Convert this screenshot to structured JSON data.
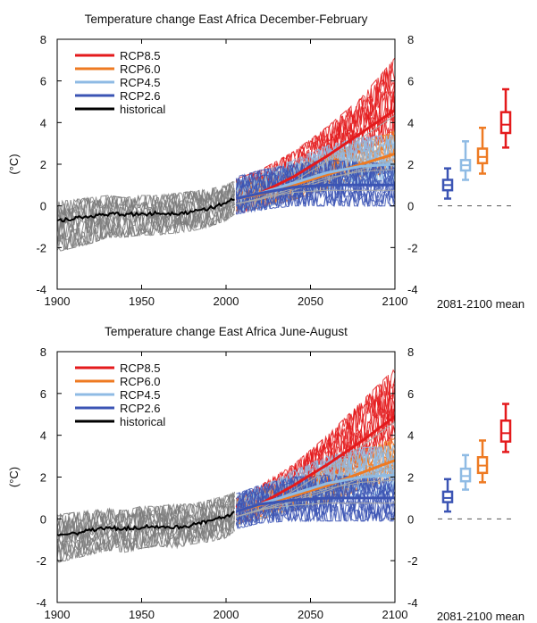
{
  "colors": {
    "historical_band": "#7b7b7b",
    "historical_mean": "#000000",
    "rcp85": "#e41a1c",
    "rcp60": "#ee7a22",
    "rcp45": "#8fbbe4",
    "rcp26": "#3b54b4",
    "ens_line": "#a8a8a8",
    "zero_dash": "#555555"
  },
  "chart_data": [
    {
      "id": "djf",
      "type": "line",
      "title": "Temperature change East Africa December-February",
      "ylabel": "(°C)",
      "xlabel": "",
      "xlim": [
        1900,
        2100
      ],
      "ylim": [
        -4,
        8
      ],
      "xticks": [
        1900,
        1950,
        2000,
        2050,
        2100
      ],
      "yticks": [
        -4,
        -2,
        0,
        2,
        4,
        6,
        8
      ],
      "boxes_label": "2081-2100 mean",
      "legend_position": "top-left",
      "series": [
        {
          "name": "RCP8.5",
          "color_key": "rcp85",
          "x": [
            2006,
            2020,
            2040,
            2060,
            2080,
            2100
          ],
          "mean": [
            0.35,
            0.6,
            1.4,
            2.4,
            3.5,
            4.6
          ],
          "low": [
            -0.35,
            -0.1,
            0.6,
            1.5,
            2.5,
            3.4
          ],
          "high": [
            1.3,
            1.7,
            2.6,
            3.8,
            5.2,
            7.1
          ]
        },
        {
          "name": "RCP6.0",
          "color_key": "rcp60",
          "x": [
            2006,
            2020,
            2040,
            2060,
            2080,
            2100
          ],
          "mean": [
            0.35,
            0.55,
            1.0,
            1.5,
            2.0,
            2.5
          ],
          "low": [
            -0.3,
            -0.1,
            0.3,
            0.8,
            1.3,
            1.7
          ],
          "high": [
            1.2,
            1.3,
            1.9,
            2.5,
            3.0,
            3.6
          ]
        },
        {
          "name": "RCP4.5",
          "color_key": "rcp45",
          "x": [
            2006,
            2020,
            2040,
            2060,
            2080,
            2100
          ],
          "mean": [
            0.35,
            0.6,
            1.1,
            1.6,
            1.9,
            2.0
          ],
          "low": [
            -0.35,
            -0.15,
            0.35,
            0.8,
            1.0,
            1.1
          ],
          "high": [
            1.3,
            1.6,
            2.2,
            2.9,
            3.3,
            3.4
          ]
        },
        {
          "name": "RCP2.6",
          "color_key": "rcp26",
          "x": [
            2006,
            2020,
            2040,
            2060,
            2080,
            2100
          ],
          "mean": [
            0.35,
            0.6,
            0.9,
            1.0,
            1.0,
            1.0
          ],
          "low": [
            -0.4,
            -0.2,
            0.0,
            0.0,
            0.0,
            0.0
          ],
          "high": [
            1.4,
            1.7,
            2.0,
            2.2,
            2.1,
            2.0
          ]
        },
        {
          "name": "historical",
          "color_key": "historical_mean",
          "x": [
            1900,
            1910,
            1920,
            1930,
            1940,
            1950,
            1960,
            1970,
            1980,
            1990,
            2000,
            2005
          ],
          "mean": [
            -0.7,
            -0.6,
            -0.5,
            -0.4,
            -0.4,
            -0.4,
            -0.35,
            -0.35,
            -0.3,
            -0.1,
            0.1,
            0.35
          ],
          "low": [
            -2.2,
            -2.0,
            -1.8,
            -1.5,
            -1.5,
            -1.4,
            -1.4,
            -1.3,
            -1.2,
            -1.0,
            -0.7,
            -0.4
          ],
          "high": [
            0.2,
            0.3,
            0.4,
            0.5,
            0.4,
            0.5,
            0.5,
            0.6,
            0.7,
            0.8,
            1.0,
            1.2
          ]
        }
      ],
      "boxes": [
        {
          "name": "RCP2.6",
          "color_key": "rcp26",
          "min": 0.35,
          "q1": 0.75,
          "median": 1.0,
          "q3": 1.25,
          "max": 1.8
        },
        {
          "name": "RCP4.5",
          "color_key": "rcp45",
          "min": 1.25,
          "q1": 1.7,
          "median": 1.95,
          "q3": 2.2,
          "max": 3.1
        },
        {
          "name": "RCP6.0",
          "color_key": "rcp60",
          "min": 1.55,
          "q1": 2.05,
          "median": 2.35,
          "q3": 2.75,
          "max": 3.75
        },
        {
          "name": "RCP8.5",
          "color_key": "rcp85",
          "min": 2.8,
          "q1": 3.5,
          "median": 3.9,
          "q3": 4.5,
          "max": 5.6
        }
      ]
    },
    {
      "id": "jja",
      "type": "line",
      "title": "Temperature change East Africa June-August",
      "ylabel": "(°C)",
      "xlabel": "",
      "xlim": [
        1900,
        2100
      ],
      "ylim": [
        -4,
        8
      ],
      "xticks": [
        1900,
        1950,
        2000,
        2050,
        2100
      ],
      "yticks": [
        -4,
        -2,
        0,
        2,
        4,
        6,
        8
      ],
      "boxes_label": "2081-2100 mean",
      "legend_position": "top-left",
      "series": [
        {
          "name": "RCP8.5",
          "color_key": "rcp85",
          "x": [
            2006,
            2020,
            2040,
            2060,
            2080,
            2100
          ],
          "mean": [
            0.35,
            0.7,
            1.6,
            2.6,
            3.7,
            4.9
          ],
          "low": [
            -0.2,
            0.0,
            0.8,
            1.7,
            2.6,
            3.7
          ],
          "high": [
            1.0,
            1.6,
            2.6,
            4.0,
            5.6,
            7.2
          ]
        },
        {
          "name": "RCP6.0",
          "color_key": "rcp60",
          "x": [
            2006,
            2020,
            2040,
            2060,
            2080,
            2100
          ],
          "mean": [
            0.35,
            0.65,
            1.1,
            1.6,
            2.2,
            2.8
          ],
          "low": [
            -0.3,
            0.0,
            0.4,
            0.8,
            1.4,
            1.9
          ],
          "high": [
            1.0,
            1.3,
            1.8,
            2.5,
            3.2,
            3.9
          ]
        },
        {
          "name": "RCP4.5",
          "color_key": "rcp45",
          "x": [
            2006,
            2020,
            2040,
            2060,
            2080,
            2100
          ],
          "mean": [
            0.35,
            0.7,
            1.2,
            1.7,
            2.0,
            2.1
          ],
          "low": [
            -0.3,
            0.0,
            0.4,
            0.8,
            1.1,
            1.2
          ],
          "high": [
            1.1,
            1.5,
            2.3,
            3.0,
            3.4,
            3.5
          ]
        },
        {
          "name": "RCP2.6",
          "color_key": "rcp26",
          "x": [
            2006,
            2020,
            2040,
            2060,
            2080,
            2100
          ],
          "mean": [
            0.35,
            0.7,
            0.9,
            1.0,
            1.0,
            1.0
          ],
          "low": [
            -0.5,
            -0.2,
            -0.1,
            -0.1,
            -0.1,
            -0.1
          ],
          "high": [
            1.2,
            1.6,
            2.0,
            2.1,
            2.0,
            1.9
          ]
        },
        {
          "name": "historical",
          "color_key": "historical_mean",
          "x": [
            1900,
            1910,
            1920,
            1930,
            1940,
            1950,
            1960,
            1970,
            1980,
            1990,
            2000,
            2005
          ],
          "mean": [
            -0.8,
            -0.7,
            -0.55,
            -0.45,
            -0.45,
            -0.4,
            -0.35,
            -0.4,
            -0.3,
            -0.1,
            0.1,
            0.35
          ],
          "low": [
            -2.1,
            -1.9,
            -1.7,
            -1.5,
            -1.6,
            -1.4,
            -1.3,
            -1.4,
            -1.2,
            -1.1,
            -0.9,
            -0.6
          ],
          "high": [
            0.2,
            0.3,
            0.4,
            0.5,
            0.4,
            0.6,
            0.6,
            0.7,
            0.7,
            0.9,
            1.1,
            1.3
          ]
        }
      ],
      "boxes": [
        {
          "name": "RCP2.6",
          "color_key": "rcp26",
          "min": 0.35,
          "q1": 0.8,
          "median": 1.0,
          "q3": 1.3,
          "max": 1.9
        },
        {
          "name": "RCP4.5",
          "color_key": "rcp45",
          "min": 1.4,
          "q1": 1.8,
          "median": 2.05,
          "q3": 2.4,
          "max": 3.05
        },
        {
          "name": "RCP6.0",
          "color_key": "rcp60",
          "min": 1.75,
          "q1": 2.2,
          "median": 2.55,
          "q3": 2.95,
          "max": 3.75
        },
        {
          "name": "RCP8.5",
          "color_key": "rcp85",
          "min": 3.2,
          "q1": 3.7,
          "median": 4.1,
          "q3": 4.7,
          "max": 5.5
        }
      ]
    }
  ]
}
